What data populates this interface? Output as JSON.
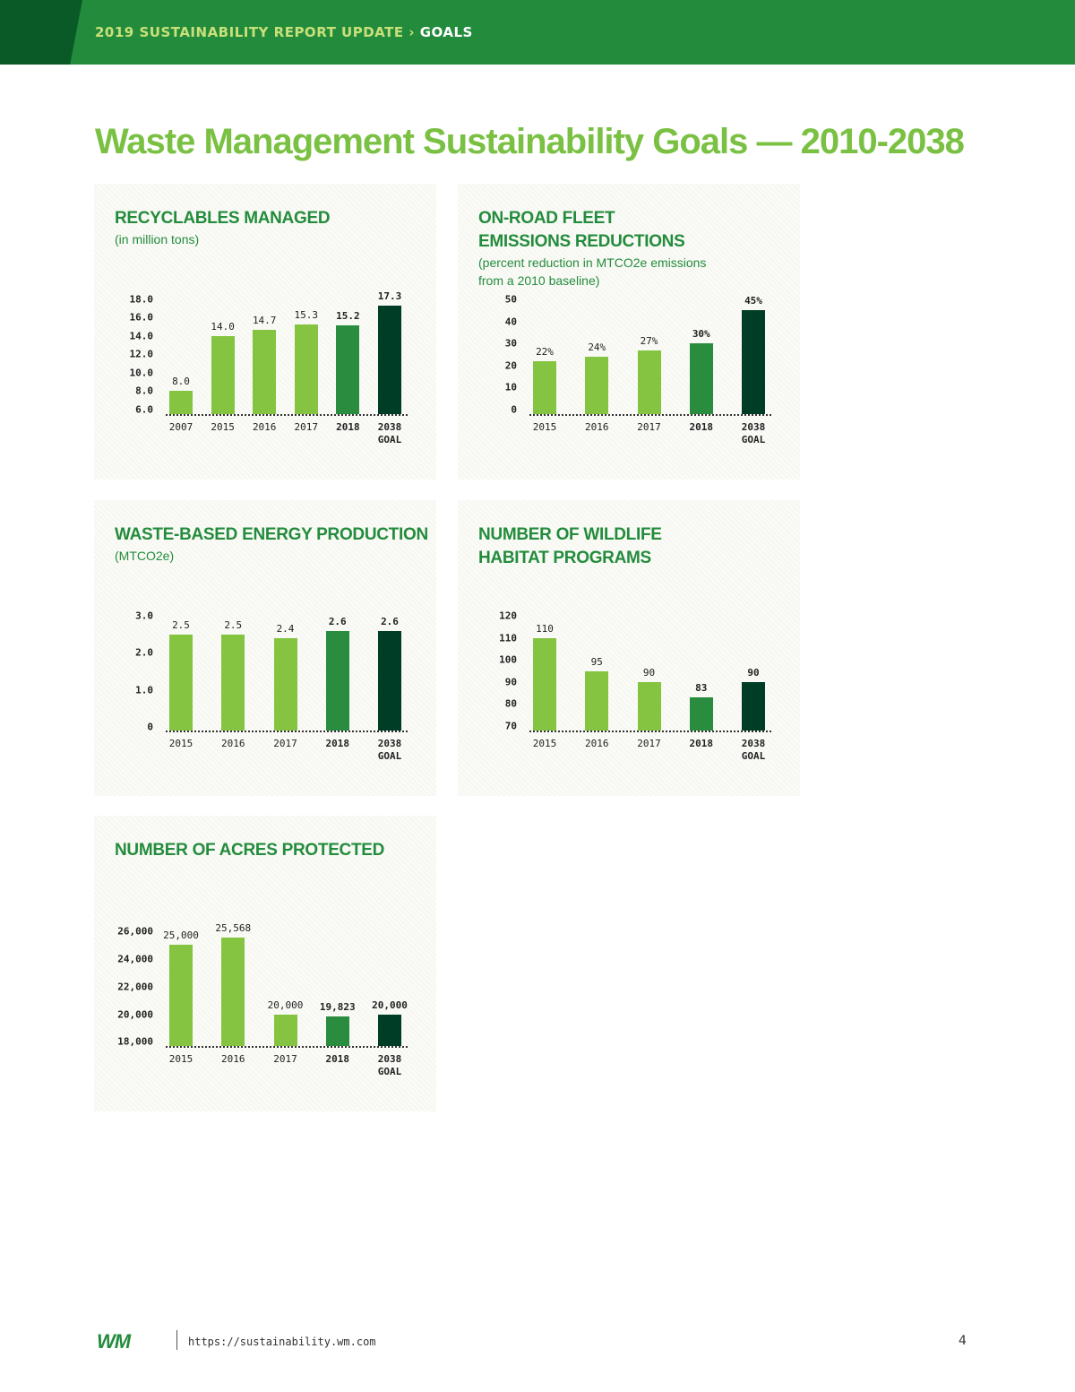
{
  "header": {
    "report": "2019 SUSTAINABILITY REPORT UPDATE",
    "separator": "›",
    "section": "GOALS"
  },
  "title": "Waste Management Sustainability Goals — 2010-2038",
  "chart_data": [
    {
      "type": "bar",
      "title": "RECYCLABLES MANAGED",
      "subtitle": "(in million tons)",
      "categories": [
        "2007",
        "2015",
        "2016",
        "2017",
        "2018",
        "2038 GOAL"
      ],
      "values": [
        8.0,
        14.0,
        14.7,
        15.3,
        15.2,
        17.3
      ],
      "value_labels": [
        "8.0",
        "14.0",
        "14.7",
        "15.3",
        "15.2",
        "17.3"
      ],
      "colors": [
        "#84c441",
        "#84c441",
        "#84c441",
        "#84c441",
        "#2a8c3f",
        "#003d26"
      ],
      "ylim": [
        5.5,
        18
      ],
      "yticks": [
        {
          "value": 6,
          "label": "6.0"
        },
        {
          "value": 8,
          "label": "8.0"
        },
        {
          "value": 10,
          "label": "10.0"
        },
        {
          "value": 12,
          "label": "12.0"
        },
        {
          "value": 14,
          "label": "14.0"
        },
        {
          "value": 16,
          "label": "16.0"
        },
        {
          "value": 18,
          "label": "18.0"
        }
      ]
    },
    {
      "type": "bar",
      "title": "ON-ROAD FLEET\nEMISSIONS REDUCTIONS",
      "subtitle": "(percent reduction in MTCO2e emissions\nfrom a 2010 baseline)",
      "categories": [
        "2015",
        "2016",
        "2017",
        "2018",
        "2038 GOAL"
      ],
      "values": [
        22,
        24,
        27,
        30,
        45
      ],
      "value_labels": [
        "22%",
        "24%",
        "27%",
        "30%",
        "45%"
      ],
      "colors": [
        "#84c441",
        "#84c441",
        "#84c441",
        "#2a8c3f",
        "#003d26"
      ],
      "ylim": [
        -2,
        50
      ],
      "yticks": [
        0,
        10,
        20,
        30,
        40,
        50
      ]
    },
    {
      "type": "bar",
      "title": "WASTE-BASED ENERGY PRODUCTION",
      "subtitle": "(MTCO2e)",
      "categories": [
        "2015",
        "2016",
        "2017",
        "2018",
        "2038 GOAL"
      ],
      "values": [
        2.5,
        2.5,
        2.4,
        2.6,
        2.6
      ],
      "colors": [
        "#84c441",
        "#84c441",
        "#84c441",
        "#2a8c3f",
        "#003d26"
      ],
      "ylim": [
        -0.1,
        3
      ],
      "yticks": [
        0,
        {
          "value": 1,
          "label": "1.0"
        },
        {
          "value": 2,
          "label": "2.0"
        },
        {
          "value": 3,
          "label": "3.0"
        }
      ]
    },
    {
      "type": "bar",
      "title": "NUMBER OF WILDLIFE\nHABITAT PROGRAMS",
      "categories": [
        "2015",
        "2016",
        "2017",
        "2018",
        "2038 GOAL"
      ],
      "values": [
        110,
        95,
        90,
        83,
        90
      ],
      "colors": [
        "#84c441",
        "#84c441",
        "#84c441",
        "#2a8c3f",
        "#003d26"
      ],
      "ylim": [
        68,
        120
      ],
      "yticks": [
        70,
        80,
        90,
        100,
        110,
        120
      ]
    },
    {
      "type": "bar",
      "title": "NUMBER OF ACRES PROTECTED",
      "categories": [
        "2015",
        "2016",
        "2017",
        "2018",
        "2038 GOAL"
      ],
      "values": [
        25000,
        25568,
        20000,
        19823,
        20000
      ],
      "value_labels": [
        "25,000",
        "25,568",
        "20,000",
        "19,823",
        "20,000"
      ],
      "colors": [
        "#84c441",
        "#84c441",
        "#84c441",
        "#2a8c3f",
        "#003d26"
      ],
      "ylim": [
        17700,
        26000
      ],
      "yticks": [
        {
          "value": 18000,
          "label": "18,000"
        },
        {
          "value": 20000,
          "label": "20,000"
        },
        {
          "value": 22000,
          "label": "22,000"
        },
        {
          "value": 24000,
          "label": "24,000"
        },
        {
          "value": 26000,
          "label": "26,000"
        }
      ]
    }
  ],
  "footer": {
    "logo": "WM",
    "url": "https://sustainability.wm.com",
    "page": "4"
  }
}
